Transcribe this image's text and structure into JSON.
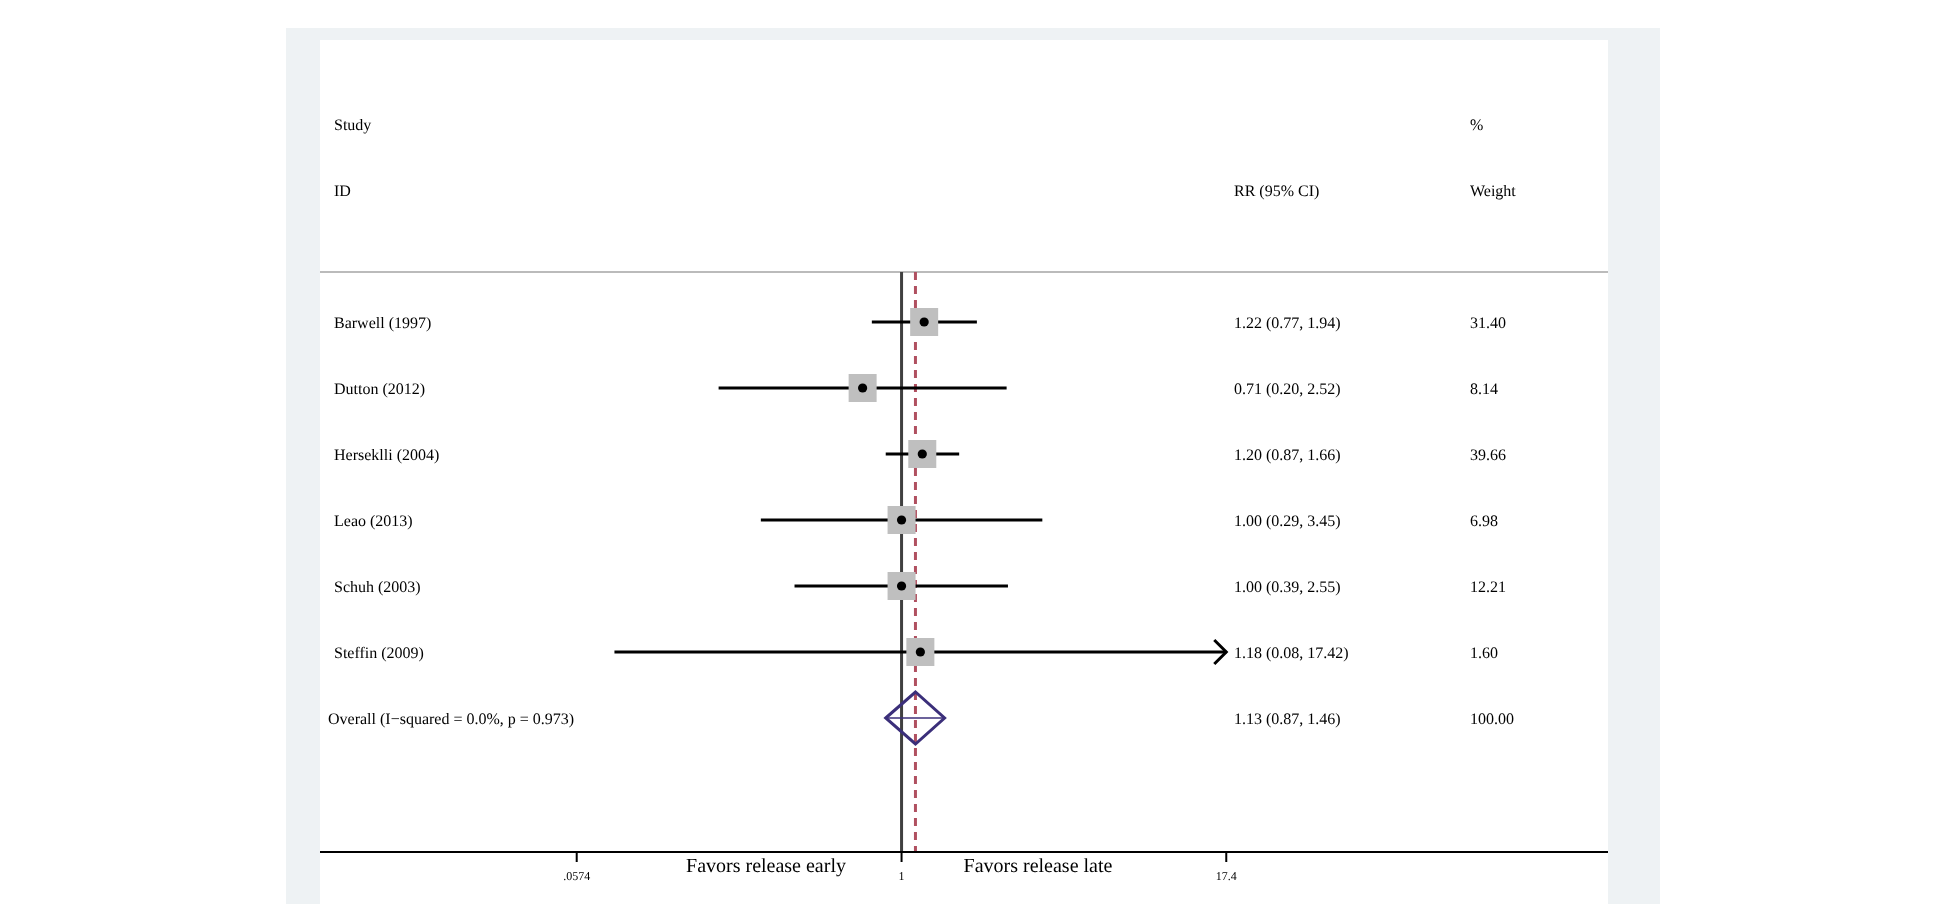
{
  "chart_data": {
    "type": "scatter",
    "orientation": "horizontal",
    "log": "x",
    "categories": [
      "Barwell (1997)",
      "Dutton (2012)",
      "Herseklli (2004)",
      "Leao (2013)",
      "Schuh (2003)",
      "Steffin (2009)",
      "Overall  (I−squared = 0.0%, p = 0.973)"
    ],
    "series": [
      {
        "marker": "square",
        "color": "#bfbfbf",
        "values": [
          1.22,
          0.71,
          1.2,
          1.0,
          1.0,
          1.18,
          null
        ],
        "errors": [
          [
            0.77,
            1.94
          ],
          [
            0.2,
            2.52
          ],
          [
            0.87,
            1.66
          ],
          [
            0.29,
            3.45
          ],
          [
            0.39,
            2.55
          ],
          [
            0.08,
            17.42
          ],
          null
        ]
      },
      {
        "marker": "diamond",
        "color": "#3b2f7a",
        "values": [
          null,
          null,
          null,
          null,
          null,
          null,
          1.13
        ],
        "errors": [
          null,
          null,
          null,
          null,
          null,
          null,
          [
            0.87,
            1.46
          ]
        ]
      }
    ],
    "xlim": [
      0.006,
      500
    ],
    "xticks": [
      {
        "value": 0.0574,
        "label": ".0574"
      },
      1,
      17.4
    ],
    "ref_lines": [
      {
        "axis": "x",
        "value": 1,
        "color": "#404040",
        "line_style": "solid"
      },
      {
        "axis": "x",
        "value": 1.13,
        "color": "#b05060",
        "line_style": "dashed"
      }
    ],
    "annotations": [
      "Study",
      "ID",
      "RR (95% CI)",
      "%",
      "Weight",
      "Favors release early",
      "Favors release late",
      "1.22 (0.77, 1.94)",
      "31.40",
      "0.71 (0.20, 2.52)",
      "8.14",
      "1.20 (0.87, 1.66)",
      "39.66",
      "1.00 (0.29, 3.45)",
      "6.98",
      "1.00 (0.39, 2.55)",
      "12.21",
      "1.18 (0.08, 17.42)",
      "1.60",
      "1.13 (0.87, 1.46)",
      "100.00"
    ]
  }
}
